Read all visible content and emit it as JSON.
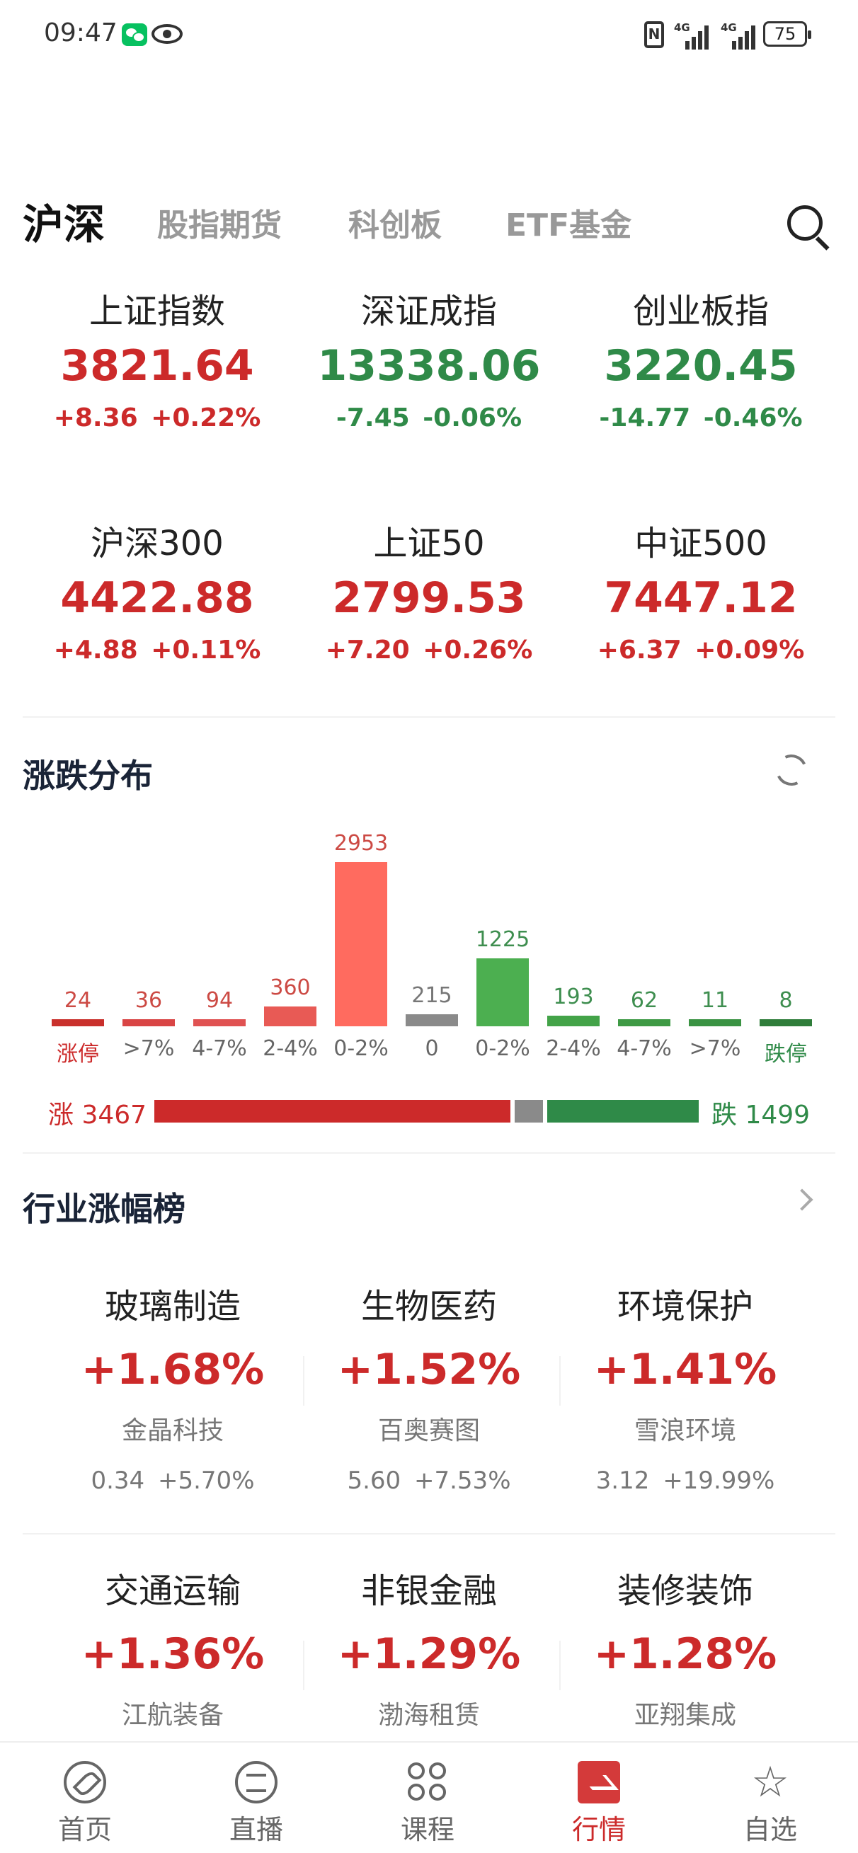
{
  "status_bar": {
    "time": "09:47",
    "net1": "4G",
    "net2": "4G",
    "battery": "75",
    "icons": [
      "wechat-icon",
      "eye-icon",
      "nfc-icon",
      "signal-icon",
      "signal-icon",
      "battery-icon"
    ]
  },
  "top_tabs": [
    {
      "label": "沪深",
      "active": true
    },
    {
      "label": "股指期货",
      "active": false
    },
    {
      "label": "科创板",
      "active": false
    },
    {
      "label": "ETF基金",
      "active": false
    }
  ],
  "indices": [
    {
      "name": "上证指数",
      "price": "3821.64",
      "change": "+8.36 +0.22%",
      "trend": "up"
    },
    {
      "name": "深证成指",
      "price": "13338.06",
      "change": "-7.45 -0.06%",
      "trend": "down"
    },
    {
      "name": "创业板指",
      "price": "3220.45",
      "change": "-14.77 -0.46%",
      "trend": "down"
    },
    {
      "name": "沪深300",
      "price": "4422.88",
      "change": "+4.88 +0.11%",
      "trend": "up"
    },
    {
      "name": "上证50",
      "price": "2799.53",
      "change": "+7.20 +0.26%",
      "trend": "up"
    },
    {
      "name": "中证500",
      "price": "7447.12",
      "change": "+6.37 +0.09%",
      "trend": "up"
    }
  ],
  "distribution": {
    "title": "涨跌分布",
    "up_label": "涨 3467",
    "down_label": "跌 1499"
  },
  "chart_data": {
    "type": "bar",
    "categories": [
      "涨停",
      ">7%",
      "4-7%",
      "2-4%",
      "0-2%",
      "0",
      "0-2%",
      "2-4%",
      "4-7%",
      ">7%",
      "跌停"
    ],
    "values": [
      24,
      36,
      94,
      360,
      2953,
      215,
      1225,
      193,
      62,
      11,
      8
    ],
    "colors": [
      "#c9302c",
      "#d94545",
      "#e05252",
      "#e85a55",
      "#ff6b5f",
      "#8a8a8a",
      "#4caf50",
      "#43a348",
      "#3e9a45",
      "#3a9343",
      "#2f7d3a"
    ],
    "category_colors": [
      "#cc2a2a",
      "#666",
      "#666",
      "#666",
      "#666",
      "#666",
      "#666",
      "#666",
      "#666",
      "#666",
      "#2f8a48"
    ],
    "ratio": {
      "up": 3467,
      "flat": 215,
      "down": 1499
    }
  },
  "industry": {
    "title": "行业涨幅榜",
    "items": [
      {
        "name": "玻璃制造",
        "pct": "+1.68%",
        "stock": "金晶科技",
        "price": "0.34",
        "stock_pct": "+5.70%"
      },
      {
        "name": "生物医药",
        "pct": "+1.52%",
        "stock": "百奥赛图",
        "price": "5.60",
        "stock_pct": "+7.53%"
      },
      {
        "name": "环境保护",
        "pct": "+1.41%",
        "stock": "雪浪环境",
        "price": "3.12",
        "stock_pct": "+19.99%"
      },
      {
        "name": "交通运输",
        "pct": "+1.36%",
        "stock": "江航装备"
      },
      {
        "name": "非银金融",
        "pct": "+1.29%",
        "stock": "渤海租赁"
      },
      {
        "name": "装修装饰",
        "pct": "+1.28%",
        "stock": "亚翔集成"
      }
    ]
  },
  "bottom_nav": [
    {
      "label": "首页",
      "icon": "compass-icon"
    },
    {
      "label": "直播",
      "icon": "chat-icon"
    },
    {
      "label": "课程",
      "icon": "course-icon"
    },
    {
      "label": "行情",
      "icon": "market-icon",
      "active": true
    },
    {
      "label": "自选",
      "icon": "star-icon"
    }
  ]
}
